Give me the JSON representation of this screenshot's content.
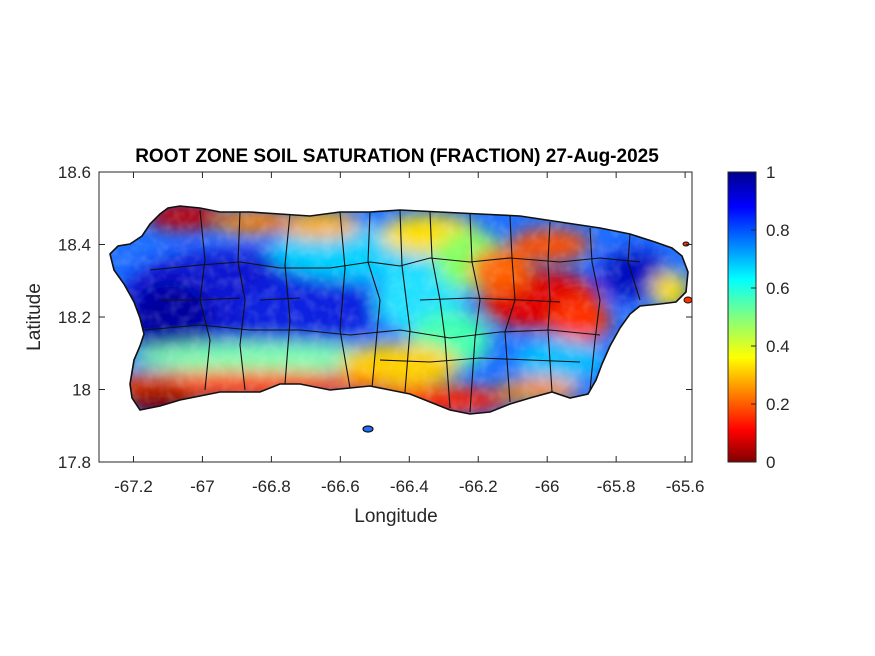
{
  "chart_data": {
    "type": "heatmap",
    "title": "ROOT ZONE SOIL SATURATION (FRACTION) 27-Aug-2025",
    "xlabel": "Longitude",
    "ylabel": "Latitude",
    "xlim": [
      -67.3,
      -65.58
    ],
    "ylim": [
      17.8,
      18.6
    ],
    "xticks": [
      -67.2,
      -67,
      -66.8,
      -66.6,
      -66.4,
      -66.2,
      -66,
      -65.8,
      -65.6
    ],
    "xtick_labels": [
      "-67.2",
      "-67",
      "-66.8",
      "-66.6",
      "-66.4",
      "-66.2",
      "-66",
      "-65.8",
      "-65.6"
    ],
    "yticks": [
      17.8,
      18,
      18.2,
      18.4,
      18.6
    ],
    "ytick_labels": [
      "17.8",
      "18",
      "18.2",
      "18.4",
      "18.6"
    ],
    "colorbar": {
      "colormap": "jet (reversed)",
      "range": [
        0,
        1
      ],
      "ticks": [
        0,
        0.2,
        0.4,
        0.6,
        0.8,
        1
      ],
      "tick_labels": [
        "0",
        "0.2",
        "0.4",
        "0.6",
        "0.8",
        "1"
      ],
      "low_color": "#800000",
      "high_color": "#00008f"
    },
    "grid": false,
    "region": "Puerto Rico",
    "pattern_summary": [
      {
        "area": "west-central interior",
        "approx_value": 0.95
      },
      {
        "area": "south coast",
        "approx_value": 0.1
      },
      {
        "area": "north-west coast",
        "approx_value": 0.1
      },
      {
        "area": "east-central",
        "approx_value": 0.15
      },
      {
        "area": "north-east corner",
        "approx_value": 0.9
      }
    ]
  }
}
